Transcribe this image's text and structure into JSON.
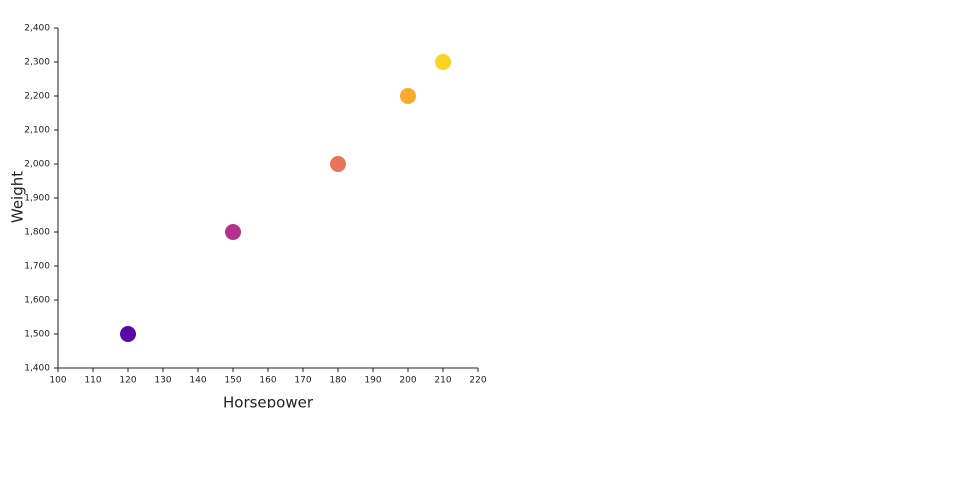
{
  "chart_data": {
    "type": "scatter",
    "x_label": "Horsepower",
    "y_label": "Weight",
    "x": [
      120,
      150,
      180,
      200,
      210
    ],
    "values": [
      1500,
      1800,
      2000,
      2200,
      2300
    ],
    "colors": [
      "#5a07a5",
      "#b5318e",
      "#e9745a",
      "#f8ab2e",
      "#fbd423"
    ],
    "xlim": [
      100,
      220
    ],
    "xticks": [
      100,
      110,
      120,
      130,
      140,
      150,
      160,
      170,
      180,
      190,
      200,
      210,
      220
    ],
    "ylim": [
      1400,
      2400
    ],
    "yticks": [
      {
        "value": 1400,
        "label": "1,400"
      },
      {
        "value": 1500,
        "label": "1,500"
      },
      {
        "value": 1600,
        "label": "1,600"
      },
      {
        "value": 1700,
        "label": "1,700"
      },
      {
        "value": 1800,
        "label": "1,800"
      },
      {
        "value": 1900,
        "label": "1,900"
      },
      {
        "value": 2000,
        "label": "2,000"
      },
      {
        "value": 2100,
        "label": "2,100"
      },
      {
        "value": 2200,
        "label": "2,200"
      },
      {
        "value": 2300,
        "label": "2,300"
      },
      {
        "value": 2400,
        "label": "2,400"
      }
    ]
  }
}
